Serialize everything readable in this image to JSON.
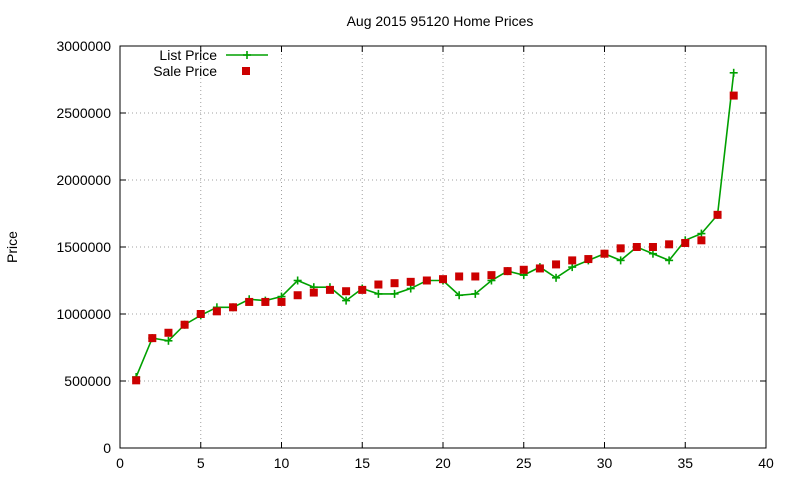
{
  "chart_data": {
    "type": "line",
    "title": "Aug 2015 95120 Home Prices",
    "xlabel": "",
    "ylabel": "Price",
    "xlim": [
      0,
      40
    ],
    "ylim": [
      0,
      3000000
    ],
    "x_ticks": [
      0,
      5,
      10,
      15,
      20,
      25,
      30,
      35,
      40
    ],
    "y_ticks": [
      0,
      500000,
      1000000,
      1500000,
      2000000,
      2500000,
      3000000
    ],
    "grid": true,
    "legend_position": "top-left",
    "series": [
      {
        "name": "List Price",
        "style": "line-plus",
        "color": "#00a000",
        "x": [
          1,
          2,
          3,
          4,
          5,
          6,
          7,
          8,
          9,
          10,
          11,
          12,
          13,
          14,
          15,
          16,
          17,
          18,
          19,
          20,
          21,
          22,
          23,
          24,
          25,
          26,
          27,
          28,
          29,
          30,
          31,
          32,
          33,
          34,
          35,
          36,
          37,
          38
        ],
        "values": [
          530000,
          820000,
          800000,
          920000,
          990000,
          1050000,
          1050000,
          1110000,
          1100000,
          1130000,
          1250000,
          1200000,
          1200000,
          1100000,
          1190000,
          1150000,
          1150000,
          1190000,
          1250000,
          1250000,
          1140000,
          1150000,
          1250000,
          1320000,
          1290000,
          1350000,
          1270000,
          1350000,
          1400000,
          1450000,
          1400000,
          1500000,
          1450000,
          1400000,
          1550000,
          1600000,
          1740000,
          2800000
        ]
      },
      {
        "name": "Sale Price",
        "style": "square-points",
        "color": "#cc0000",
        "x": [
          1,
          2,
          3,
          4,
          5,
          6,
          7,
          8,
          9,
          10,
          11,
          12,
          13,
          14,
          15,
          16,
          17,
          18,
          19,
          20,
          21,
          22,
          23,
          24,
          25,
          26,
          27,
          28,
          29,
          30,
          31,
          32,
          33,
          34,
          35,
          36,
          37,
          38
        ],
        "values": [
          505000,
          820000,
          860000,
          920000,
          1000000,
          1020000,
          1050000,
          1090000,
          1090000,
          1090000,
          1140000,
          1160000,
          1180000,
          1170000,
          1180000,
          1220000,
          1230000,
          1240000,
          1250000,
          1260000,
          1280000,
          1280000,
          1290000,
          1320000,
          1330000,
          1340000,
          1370000,
          1400000,
          1410000,
          1450000,
          1490000,
          1500000,
          1500000,
          1520000,
          1530000,
          1550000,
          1740000,
          2630000
        ]
      }
    ]
  }
}
